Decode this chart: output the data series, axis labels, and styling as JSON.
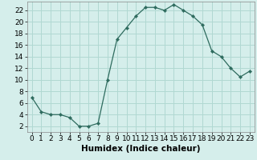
{
  "x": [
    0,
    1,
    2,
    3,
    4,
    5,
    6,
    7,
    8,
    9,
    10,
    11,
    12,
    13,
    14,
    15,
    16,
    17,
    18,
    19,
    20,
    21,
    22,
    23
  ],
  "y": [
    7,
    4.5,
    4,
    4,
    3.5,
    2,
    2,
    2.5,
    10,
    17,
    19,
    21,
    22.5,
    22.5,
    22,
    23,
    22,
    21,
    19.5,
    15,
    14,
    12,
    10.5,
    11.5
  ],
  "line_color": "#2e6b5e",
  "marker_color": "#2e6b5e",
  "bg_color": "#d5eeeb",
  "grid_color": "#b0d8d2",
  "xlabel": "Humidex (Indice chaleur)",
  "xlim": [
    -0.5,
    23.5
  ],
  "ylim": [
    1,
    23.5
  ],
  "yticks": [
    2,
    4,
    6,
    8,
    10,
    12,
    14,
    16,
    18,
    20,
    22
  ],
  "xticks": [
    0,
    1,
    2,
    3,
    4,
    5,
    6,
    7,
    8,
    9,
    10,
    11,
    12,
    13,
    14,
    15,
    16,
    17,
    18,
    19,
    20,
    21,
    22,
    23
  ],
  "font_size": 6.5,
  "xlabel_font_size": 7.5
}
